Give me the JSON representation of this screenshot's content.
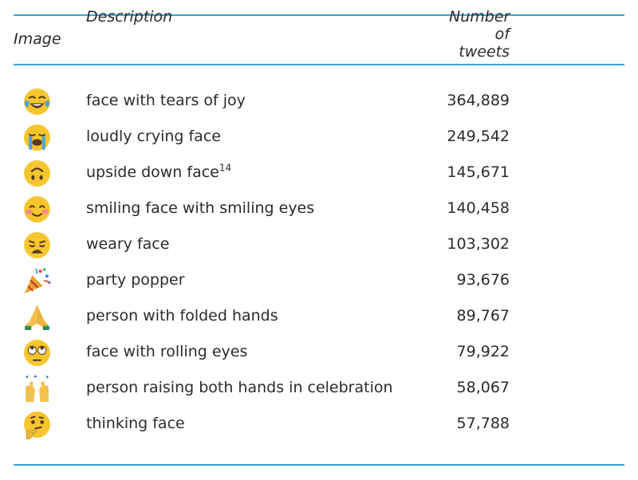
{
  "header": {
    "image": "Image",
    "description": "Description",
    "number": "Number of tweets"
  },
  "rows": [
    {
      "icon": "face-with-tears-of-joy-icon",
      "description": "face with tears of joy",
      "sup": "",
      "count": "364,889"
    },
    {
      "icon": "loudly-crying-face-icon",
      "description": "loudly crying face",
      "sup": "",
      "count": "249,542"
    },
    {
      "icon": "upside-down-face-icon",
      "description": "upside down face",
      "sup": "14",
      "count": "145,671"
    },
    {
      "icon": "smiling-face-with-smiling-eyes-icon",
      "description": "smiling face with smiling eyes",
      "sup": "",
      "count": "140,458"
    },
    {
      "icon": "weary-face-icon",
      "description": "weary face",
      "sup": "",
      "count": "103,302"
    },
    {
      "icon": "party-popper-icon",
      "description": "party popper",
      "sup": "",
      "count": "93,676"
    },
    {
      "icon": "person-with-folded-hands-icon",
      "description": "person with folded hands",
      "sup": "",
      "count": "89,767"
    },
    {
      "icon": "face-with-rolling-eyes-icon",
      "description": "face with rolling eyes",
      "sup": "",
      "count": "79,922"
    },
    {
      "icon": "person-raising-both-hands-icon",
      "description": "person raising both hands in celebration",
      "sup": "",
      "count": "58,067"
    },
    {
      "icon": "thinking-face-icon",
      "description": "thinking face",
      "sup": "",
      "count": "57,788"
    }
  ],
  "colors": {
    "rule": "#3aa6d8",
    "emoji_yellow": "#f7c62f"
  }
}
